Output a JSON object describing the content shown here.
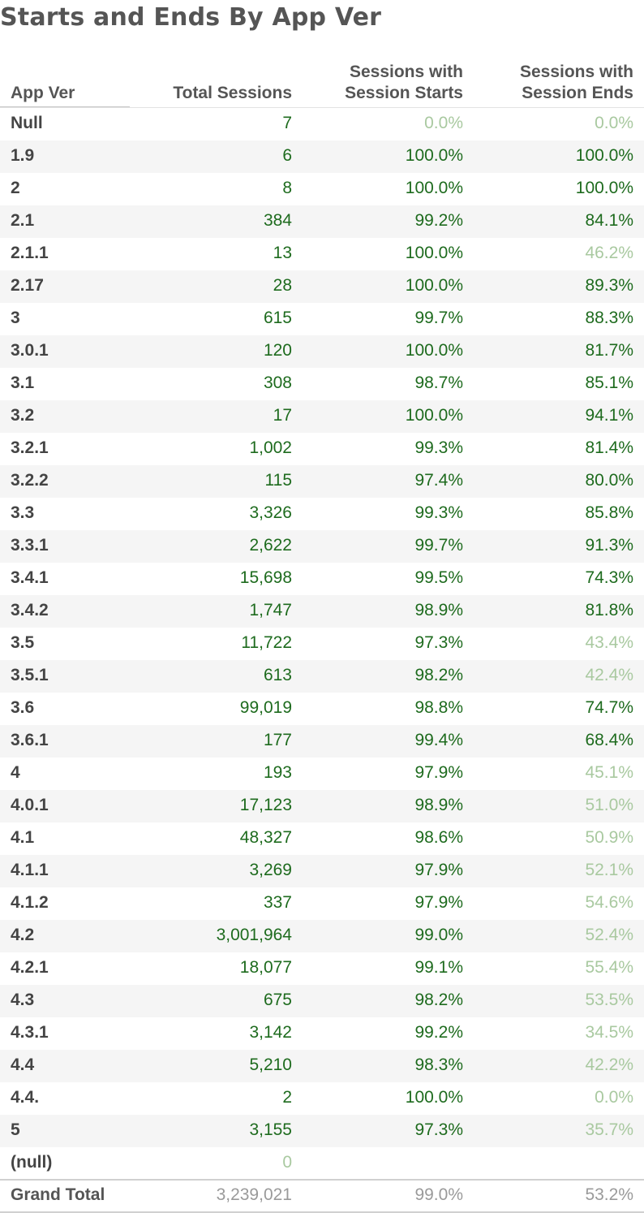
{
  "chart_data": {
    "type": "table",
    "title": "Starts and Ends By App Ver",
    "columns": [
      "App Ver",
      "Total Sessions",
      "Sessions with\nSession Starts",
      "Sessions with\nSession Ends"
    ],
    "rows": [
      {
        "app_ver": "Null",
        "total": "7",
        "starts": "0.0%",
        "ends": "0.0%"
      },
      {
        "app_ver": "1.9",
        "total": "6",
        "starts": "100.0%",
        "ends": "100.0%"
      },
      {
        "app_ver": "2",
        "total": "8",
        "starts": "100.0%",
        "ends": "100.0%"
      },
      {
        "app_ver": "2.1",
        "total": "384",
        "starts": "99.2%",
        "ends": "84.1%"
      },
      {
        "app_ver": "2.1.1",
        "total": "13",
        "starts": "100.0%",
        "ends": "46.2%"
      },
      {
        "app_ver": "2.17",
        "total": "28",
        "starts": "100.0%",
        "ends": "89.3%"
      },
      {
        "app_ver": "3",
        "total": "615",
        "starts": "99.7%",
        "ends": "88.3%"
      },
      {
        "app_ver": "3.0.1",
        "total": "120",
        "starts": "100.0%",
        "ends": "81.7%"
      },
      {
        "app_ver": "3.1",
        "total": "308",
        "starts": "98.7%",
        "ends": "85.1%"
      },
      {
        "app_ver": "3.2",
        "total": "17",
        "starts": "100.0%",
        "ends": "94.1%"
      },
      {
        "app_ver": "3.2.1",
        "total": "1,002",
        "starts": "99.3%",
        "ends": "81.4%"
      },
      {
        "app_ver": "3.2.2",
        "total": "115",
        "starts": "97.4%",
        "ends": "80.0%"
      },
      {
        "app_ver": "3.3",
        "total": "3,326",
        "starts": "99.3%",
        "ends": "85.8%"
      },
      {
        "app_ver": "3.3.1",
        "total": "2,622",
        "starts": "99.7%",
        "ends": "91.3%"
      },
      {
        "app_ver": "3.4.1",
        "total": "15,698",
        "starts": "99.5%",
        "ends": "74.3%"
      },
      {
        "app_ver": "3.4.2",
        "total": "1,747",
        "starts": "98.9%",
        "ends": "81.8%"
      },
      {
        "app_ver": "3.5",
        "total": "11,722",
        "starts": "97.3%",
        "ends": "43.4%"
      },
      {
        "app_ver": "3.5.1",
        "total": "613",
        "starts": "98.2%",
        "ends": "42.4%"
      },
      {
        "app_ver": "3.6",
        "total": "99,019",
        "starts": "98.8%",
        "ends": "74.7%"
      },
      {
        "app_ver": "3.6.1",
        "total": "177",
        "starts": "99.4%",
        "ends": "68.4%"
      },
      {
        "app_ver": "4",
        "total": "193",
        "starts": "97.9%",
        "ends": "45.1%"
      },
      {
        "app_ver": "4.0.1",
        "total": "17,123",
        "starts": "98.9%",
        "ends": "51.0%"
      },
      {
        "app_ver": "4.1",
        "total": "48,327",
        "starts": "98.6%",
        "ends": "50.9%"
      },
      {
        "app_ver": "4.1.1",
        "total": "3,269",
        "starts": "97.9%",
        "ends": "52.1%"
      },
      {
        "app_ver": "4.1.2",
        "total": "337",
        "starts": "97.9%",
        "ends": "54.6%"
      },
      {
        "app_ver": "4.2",
        "total": "3,001,964",
        "starts": "99.0%",
        "ends": "52.4%"
      },
      {
        "app_ver": "4.2.1",
        "total": "18,077",
        "starts": "99.1%",
        "ends": "55.4%"
      },
      {
        "app_ver": "4.3",
        "total": "675",
        "starts": "98.2%",
        "ends": "53.5%"
      },
      {
        "app_ver": "4.3.1",
        "total": "3,142",
        "starts": "99.2%",
        "ends": "34.5%"
      },
      {
        "app_ver": "4.4",
        "total": "5,210",
        "starts": "98.3%",
        "ends": "42.2%"
      },
      {
        "app_ver": "4.4.",
        "total": "2",
        "starts": "100.0%",
        "ends": "0.0%"
      },
      {
        "app_ver": "5",
        "total": "3,155",
        "starts": "97.3%",
        "ends": "35.7%"
      },
      {
        "app_ver": "(null)",
        "total": "0",
        "starts": "",
        "ends": ""
      }
    ],
    "grand_total": {
      "label": "Grand Total",
      "total": "3,239,021",
      "starts": "99.0%",
      "ends": "53.2%"
    },
    "colors": {
      "strong_green": "#1e6b1e",
      "pale_green": "#a9c9a0",
      "total_gray": "#9a9a9a",
      "row_alt_bg": "#f5f5f5"
    }
  }
}
